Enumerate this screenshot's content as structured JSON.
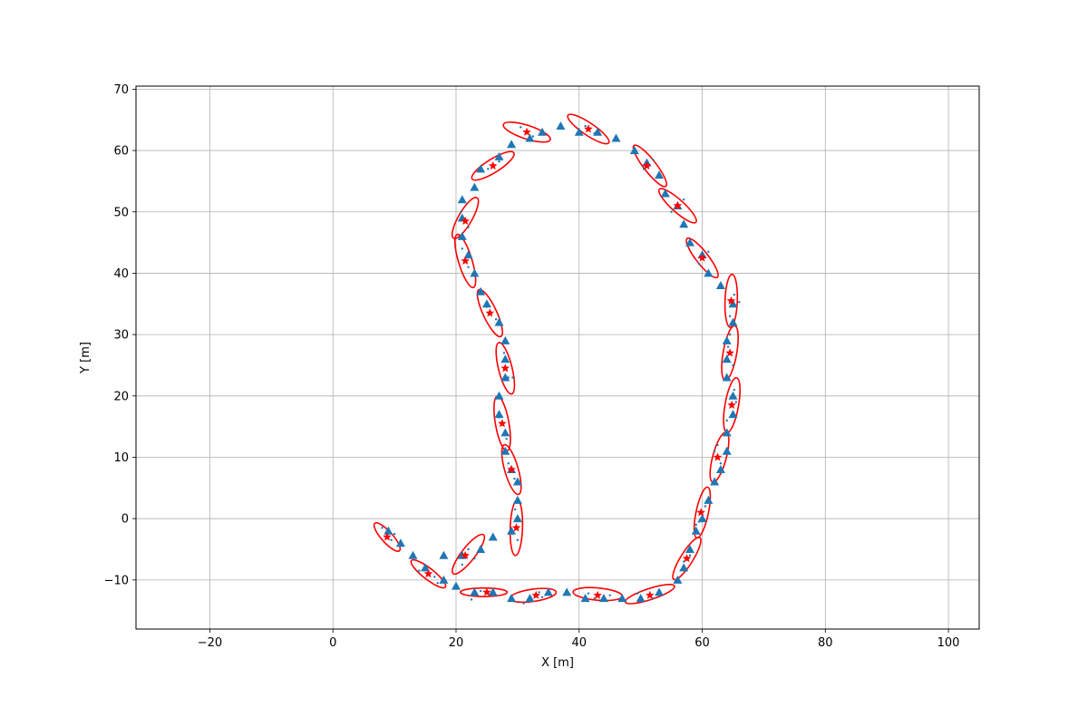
{
  "chart_data": {
    "type": "scatter",
    "title": "",
    "xlabel": "X [m]",
    "ylabel": "Y [m]",
    "xlim": [
      -32,
      105
    ],
    "ylim": [
      -18,
      70.5
    ],
    "xticks": [
      -20,
      0,
      20,
      40,
      60,
      80,
      100
    ],
    "yticks": [
      -10,
      0,
      10,
      20,
      30,
      40,
      50,
      60,
      70
    ],
    "grid": true,
    "colors": {
      "landmarks": "#1f77b4",
      "estimates": "#ff0000",
      "ellipses": "#ff0000",
      "particles": "#1f77b4"
    },
    "landmarks": [
      [
        9,
        -2
      ],
      [
        11,
        -4
      ],
      [
        13,
        -6
      ],
      [
        15,
        -8
      ],
      [
        18,
        -10
      ],
      [
        20,
        -11
      ],
      [
        18,
        -6
      ],
      [
        21,
        -6
      ],
      [
        24,
        -5
      ],
      [
        26,
        -3
      ],
      [
        23,
        -12
      ],
      [
        26,
        -12
      ],
      [
        29,
        -13
      ],
      [
        32,
        -13
      ],
      [
        35,
        -12
      ],
      [
        38,
        -12
      ],
      [
        41,
        -13
      ],
      [
        44,
        -13
      ],
      [
        47,
        -13
      ],
      [
        50,
        -13
      ],
      [
        53,
        -12
      ],
      [
        56,
        -10
      ],
      [
        57,
        -8
      ],
      [
        58,
        -5
      ],
      [
        59,
        -2
      ],
      [
        60,
        0
      ],
      [
        61,
        3
      ],
      [
        62,
        6
      ],
      [
        63,
        8
      ],
      [
        64,
        11
      ],
      [
        64,
        14
      ],
      [
        65,
        17
      ],
      [
        65,
        20
      ],
      [
        64,
        23
      ],
      [
        64,
        26
      ],
      [
        64,
        29
      ],
      [
        65,
        32
      ],
      [
        65,
        35
      ],
      [
        63,
        38
      ],
      [
        61,
        40
      ],
      [
        60,
        43
      ],
      [
        58,
        45
      ],
      [
        57,
        48
      ],
      [
        56,
        51
      ],
      [
        54,
        53
      ],
      [
        53,
        56
      ],
      [
        51,
        58
      ],
      [
        49,
        60
      ],
      [
        46,
        62
      ],
      [
        43,
        63
      ],
      [
        40,
        63
      ],
      [
        37,
        64
      ],
      [
        34,
        63
      ],
      [
        32,
        62
      ],
      [
        29,
        61
      ],
      [
        27,
        59
      ],
      [
        24,
        57
      ],
      [
        23,
        54
      ],
      [
        21,
        52
      ],
      [
        21,
        49
      ],
      [
        21,
        46
      ],
      [
        22,
        43
      ],
      [
        23,
        40
      ],
      [
        24,
        37
      ],
      [
        25,
        35
      ],
      [
        27,
        32
      ],
      [
        28,
        29
      ],
      [
        28,
        26
      ],
      [
        28,
        23
      ],
      [
        27,
        20
      ],
      [
        27,
        17
      ],
      [
        28,
        14
      ],
      [
        28,
        11
      ],
      [
        29,
        8
      ],
      [
        30,
        6
      ],
      [
        30,
        3
      ],
      [
        30,
        0
      ],
      [
        29,
        -2
      ]
    ],
    "estimates": [
      [
        8.8,
        -3
      ],
      [
        15.5,
        -9
      ],
      [
        21.5,
        -6
      ],
      [
        25,
        -12
      ],
      [
        33,
        -12.5
      ],
      [
        43,
        -12.5
      ],
      [
        51.5,
        -12.5
      ],
      [
        57.5,
        -6.5
      ],
      [
        59.8,
        1
      ],
      [
        62.5,
        10
      ],
      [
        64.8,
        18.5
      ],
      [
        64.5,
        27
      ],
      [
        64.7,
        35.5
      ],
      [
        60,
        42.5
      ],
      [
        56,
        51
      ],
      [
        51,
        57.5
      ],
      [
        41.5,
        63.5
      ],
      [
        31.5,
        63
      ],
      [
        26,
        57.5
      ],
      [
        21.5,
        48.5
      ],
      [
        21.5,
        42
      ],
      [
        25.5,
        33.5
      ],
      [
        28,
        24.5
      ],
      [
        27.5,
        15.5
      ],
      [
        29,
        8
      ],
      [
        29.8,
        -1.5
      ]
    ],
    "ellipses": [
      {
        "cx": 8.8,
        "cy": -3,
        "rx": 3.0,
        "ry": 0.9,
        "angle": -48
      },
      {
        "cx": 15.5,
        "cy": -9,
        "rx": 3.5,
        "ry": 0.9,
        "angle": -38
      },
      {
        "cx": 22,
        "cy": -5.8,
        "rx": 4.0,
        "ry": 1.1,
        "angle": 52
      },
      {
        "cx": 24.5,
        "cy": -12,
        "rx": 3.8,
        "ry": 0.7,
        "angle": 0
      },
      {
        "cx": 32.5,
        "cy": -12.5,
        "rx": 3.8,
        "ry": 1.0,
        "angle": 8
      },
      {
        "cx": 43,
        "cy": -12.3,
        "rx": 4.0,
        "ry": 1.0,
        "angle": -5
      },
      {
        "cx": 51.5,
        "cy": -12.3,
        "rx": 4.2,
        "ry": 0.9,
        "angle": 18
      },
      {
        "cx": 57.5,
        "cy": -6.5,
        "rx": 4.0,
        "ry": 1.0,
        "angle": 58
      },
      {
        "cx": 60,
        "cy": 1,
        "rx": 4.2,
        "ry": 1.0,
        "angle": 78
      },
      {
        "cx": 62.8,
        "cy": 10,
        "rx": 4.2,
        "ry": 1.1,
        "angle": 75
      },
      {
        "cx": 64.8,
        "cy": 18.5,
        "rx": 4.5,
        "ry": 1.1,
        "angle": 80
      },
      {
        "cx": 64.5,
        "cy": 27,
        "rx": 4.5,
        "ry": 1.1,
        "angle": 80
      },
      {
        "cx": 64.7,
        "cy": 35.5,
        "rx": 4.3,
        "ry": 1.0,
        "angle": 88
      },
      {
        "cx": 60,
        "cy": 42.5,
        "rx": 4.0,
        "ry": 1.0,
        "angle": -52
      },
      {
        "cx": 56,
        "cy": 51,
        "rx": 4.0,
        "ry": 1.0,
        "angle": -42
      },
      {
        "cx": 51.5,
        "cy": 57.5,
        "rx": 4.2,
        "ry": 1.0,
        "angle": -52
      },
      {
        "cx": 41.5,
        "cy": 63.5,
        "rx": 4.0,
        "ry": 1.0,
        "angle": -34
      },
      {
        "cx": 31.5,
        "cy": 63,
        "rx": 4.0,
        "ry": 1.1,
        "angle": -18
      },
      {
        "cx": 26,
        "cy": 57.5,
        "rx": 4.0,
        "ry": 1.1,
        "angle": 32
      },
      {
        "cx": 21.5,
        "cy": 49,
        "rx": 3.8,
        "ry": 1.1,
        "angle": 60
      },
      {
        "cx": 21.5,
        "cy": 42,
        "rx": 4.5,
        "ry": 1.1,
        "angle": -73
      },
      {
        "cx": 25.5,
        "cy": 33.5,
        "rx": 4.2,
        "ry": 1.1,
        "angle": -65
      },
      {
        "cx": 28,
        "cy": 24.5,
        "rx": 4.3,
        "ry": 1.1,
        "angle": -76
      },
      {
        "cx": 27.5,
        "cy": 15.5,
        "rx": 4.5,
        "ry": 1.1,
        "angle": -80
      },
      {
        "cx": 29,
        "cy": 8,
        "rx": 4.2,
        "ry": 1.1,
        "angle": -74
      },
      {
        "cx": 29.8,
        "cy": -1.5,
        "rx": 4.5,
        "ry": 1.0,
        "angle": 88
      }
    ],
    "particles": [
      [
        8,
        -1.5
      ],
      [
        9.5,
        -3.5
      ],
      [
        10,
        -2.5
      ],
      [
        14,
        -8.5
      ],
      [
        16.5,
        -9.5
      ],
      [
        17,
        -10.5
      ],
      [
        21,
        -7.5
      ],
      [
        22,
        -5
      ],
      [
        23,
        -6.5
      ],
      [
        22.5,
        -13.2
      ],
      [
        24,
        -11.8
      ],
      [
        25.5,
        -12.3
      ],
      [
        31,
        -13.8
      ],
      [
        33.5,
        -12
      ],
      [
        34,
        -12.8
      ],
      [
        41.5,
        -12.2
      ],
      [
        42.5,
        -13
      ],
      [
        45,
        -12.5
      ],
      [
        49.5,
        -12.2
      ],
      [
        52,
        -13
      ],
      [
        53,
        -12
      ],
      [
        57,
        -7
      ],
      [
        58,
        -6
      ],
      [
        59,
        -1
      ],
      [
        60.5,
        2
      ],
      [
        59.5,
        -0.5
      ],
      [
        62,
        11
      ],
      [
        63,
        9
      ],
      [
        62.5,
        12
      ],
      [
        65.5,
        19
      ],
      [
        64,
        16
      ],
      [
        65.2,
        21
      ],
      [
        64.2,
        28
      ],
      [
        65,
        25
      ],
      [
        64.5,
        30
      ],
      [
        66,
        35.3
      ],
      [
        64.5,
        33
      ],
      [
        65.2,
        36.5
      ],
      [
        59.5,
        41.5
      ],
      [
        61,
        43.5
      ],
      [
        55,
        50
      ],
      [
        57,
        52
      ],
      [
        50.5,
        57
      ],
      [
        52,
        58.5
      ],
      [
        41,
        64
      ],
      [
        42.5,
        62.8
      ],
      [
        30.5,
        63.8
      ],
      [
        32.5,
        62.3
      ],
      [
        25.2,
        57
      ],
      [
        27,
        58.2
      ],
      [
        22,
        47.5
      ],
      [
        20.8,
        50
      ],
      [
        21,
        44
      ],
      [
        22,
        41
      ],
      [
        25,
        34.5
      ],
      [
        26.5,
        32.5
      ],
      [
        28.5,
        23
      ],
      [
        29.2,
        23
      ],
      [
        27.8,
        27
      ],
      [
        27,
        16.5
      ],
      [
        28.2,
        13
      ],
      [
        28.5,
        9
      ],
      [
        29.5,
        6.5
      ],
      [
        30,
        -3.5
      ],
      [
        29.6,
        1.5
      ]
    ]
  }
}
